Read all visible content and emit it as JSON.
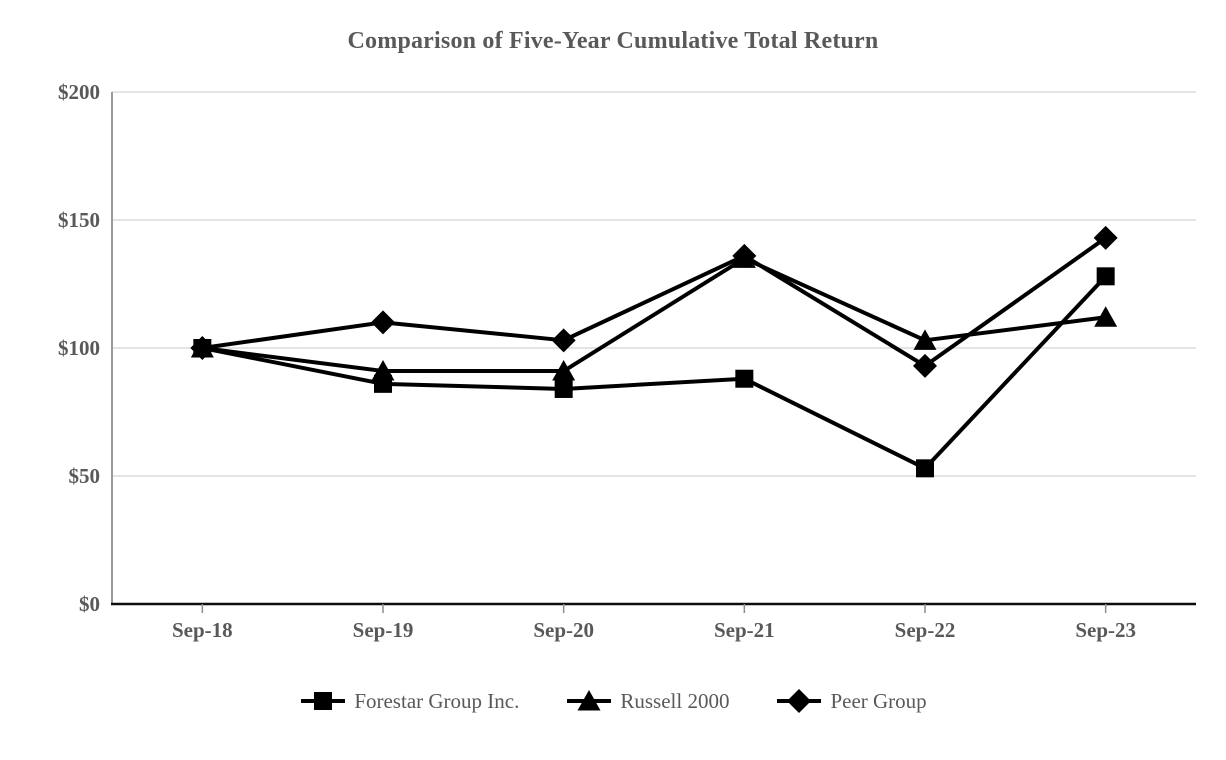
{
  "chart_data": {
    "type": "line",
    "title": "Comparison of Five-Year Cumulative Total Return",
    "categories": [
      "Sep-18",
      "Sep-19",
      "Sep-20",
      "Sep-21",
      "Sep-22",
      "Sep-23"
    ],
    "series": [
      {
        "name": "Forestar Group Inc.",
        "marker": "square",
        "values": [
          100,
          86,
          84,
          88,
          53,
          128
        ]
      },
      {
        "name": "Russell 2000",
        "marker": "triangle",
        "values": [
          100,
          91,
          91,
          135,
          103,
          112
        ]
      },
      {
        "name": "Peer Group",
        "marker": "diamond",
        "values": [
          100,
          110,
          103,
          136,
          93,
          143
        ]
      }
    ],
    "ylim": [
      0,
      200
    ],
    "y_ticks": [
      {
        "value": 0,
        "label": "$0"
      },
      {
        "value": 50,
        "label": "$50"
      },
      {
        "value": 100,
        "label": "$100"
      },
      {
        "value": 150,
        "label": "$150"
      },
      {
        "value": 200,
        "label": "$200"
      }
    ],
    "grid": "horizontal",
    "legend_position": "bottom",
    "colors": {
      "series": "#000000",
      "text": "#595959",
      "gridline": "#dcdcdc",
      "x_axis_line": "#0d0d0d",
      "y_axis_line": "#9a9a9a",
      "tick": "#8c8c8c"
    }
  }
}
